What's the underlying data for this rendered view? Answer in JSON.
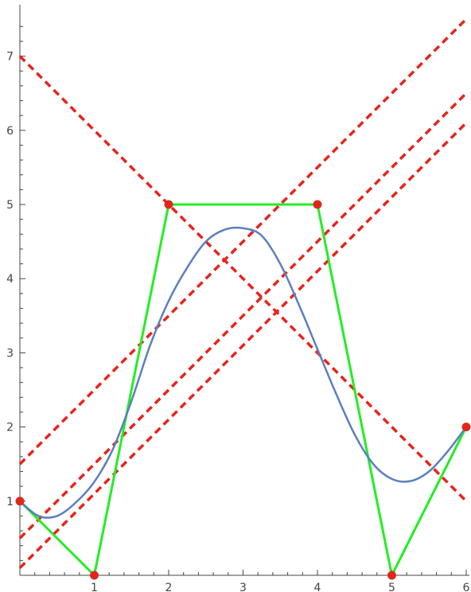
{
  "chart_data": {
    "type": "line",
    "title": "",
    "xlabel": "",
    "ylabel": "",
    "xlim": [
      0,
      6
    ],
    "ylim": [
      0,
      7.5
    ],
    "x_ticks": [
      1,
      2,
      3,
      4,
      5,
      6
    ],
    "y_ticks": [
      1,
      2,
      3,
      4,
      5,
      6,
      7
    ],
    "grid": false,
    "legend": "none",
    "control_points": [
      [
        0,
        1
      ],
      [
        1,
        0
      ],
      [
        2,
        5
      ],
      [
        4,
        5
      ],
      [
        5,
        0
      ],
      [
        6,
        2
      ]
    ],
    "polygon_color": "#22ee22",
    "point_color": "#e8231a",
    "curve": {
      "color": "#5b7fbf",
      "x": [
        0,
        0.25,
        0.5,
        0.75,
        1,
        1.25,
        1.5,
        1.75,
        2,
        2.25,
        2.5,
        2.75,
        3,
        3.25,
        3.5,
        3.75,
        4,
        4.25,
        4.5,
        4.75,
        5,
        5.25,
        5.5,
        5.75,
        6
      ],
      "y": [
        1,
        0.8,
        0.8,
        0.98,
        1.26,
        1.7,
        2.35,
        3.1,
        3.7,
        4.15,
        4.5,
        4.66,
        4.68,
        4.58,
        4.2,
        3.65,
        3.05,
        2.45,
        1.9,
        1.5,
        1.3,
        1.27,
        1.4,
        1.67,
        2
      ]
    },
    "dashed_lines": {
      "color": "#e8231a",
      "segments": [
        [
          [
            0,
            7
          ],
          [
            6,
            1
          ]
        ],
        [
          [
            0,
            1.5
          ],
          [
            6,
            7.5
          ]
        ],
        [
          [
            0,
            0.5
          ],
          [
            6,
            6.5
          ]
        ],
        [
          [
            0,
            0.1
          ],
          [
            6,
            6.1
          ]
        ]
      ]
    }
  }
}
